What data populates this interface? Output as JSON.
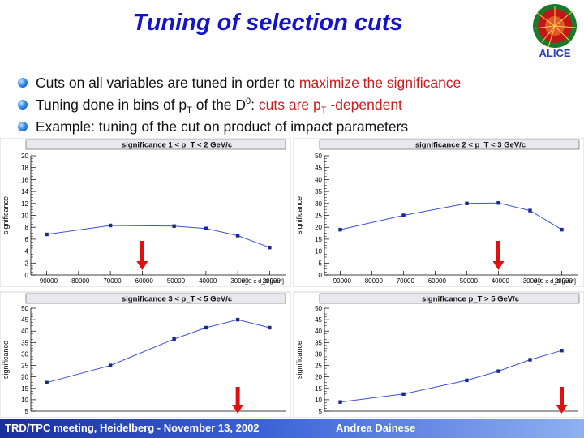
{
  "slide": {
    "title": "Tuning of selection cuts",
    "bullets": [
      {
        "parts": [
          {
            "t": "Cuts on all variables are tuned in order to ",
            "c": ""
          },
          {
            "t": "maximize the significance",
            "c": "red"
          }
        ]
      },
      {
        "parts": [
          {
            "t": "Tuning done in bins of p",
            "c": ""
          },
          {
            "t": "T",
            "c": "sub"
          },
          {
            "t": " of the D",
            "c": ""
          },
          {
            "t": "0",
            "c": "sup"
          },
          {
            "t": ": ",
            "c": ""
          },
          {
            "t": "cuts are p",
            "c": "red"
          },
          {
            "t": "T",
            "c": "red sub"
          },
          {
            "t": " -dependent",
            "c": "red"
          }
        ]
      },
      {
        "parts": [
          {
            "t": "Example: tuning of the cut on product of impact parameters",
            "c": ""
          }
        ]
      }
    ],
    "footer_left": "TRD/TPC meeting, Heidelberg - November 13, 2002",
    "footer_right": "Andrea Dainese",
    "logo_text": "ALICE",
    "logo_icon": "alice-logo-icon",
    "arrow_icon": "red-arrow-down-icon"
  },
  "colors": {
    "title": "#1515c8",
    "highlight": "#c81e1e",
    "curve": "#3c50d8",
    "marker": "#1a2a8a",
    "arrow": "#e01010",
    "footer_start": "#1a2f9c",
    "footer_end": "#8fb0f0"
  },
  "chart_data": [
    {
      "type": "line",
      "title": "significance  1 < p_T < 2 GeV/c",
      "ylabel": "significance",
      "xlabel": "d_0 x d_0 [µm²]",
      "ylim": [
        0,
        20
      ],
      "yticks": [
        0,
        2,
        4,
        6,
        8,
        10,
        12,
        14,
        16,
        18,
        20
      ],
      "xlim": [
        -95000,
        -15000
      ],
      "xticks": [
        -90000,
        -80000,
        -70000,
        -60000,
        -50000,
        -40000,
        -30000,
        -20000
      ],
      "x": [
        -90000,
        -70000,
        -50000,
        -40000,
        -30000,
        -20000
      ],
      "values": [
        6.8,
        8.3,
        8.2,
        7.8,
        6.6,
        4.6
      ],
      "arrow_x": -60000
    },
    {
      "type": "line",
      "title": "significance  2 < p_T < 3 GeV/c",
      "ylabel": "significance",
      "xlabel": "d_0 x d_0 [µm²]",
      "ylim": [
        0,
        50
      ],
      "yticks": [
        0,
        5,
        10,
        15,
        20,
        25,
        30,
        35,
        40,
        45,
        50
      ],
      "xlim": [
        -95000,
        -15000
      ],
      "xticks": [
        -90000,
        -80000,
        -70000,
        -60000,
        -50000,
        -40000,
        -30000,
        -20000
      ],
      "x": [
        -90000,
        -70000,
        -50000,
        -40000,
        -30000,
        -20000
      ],
      "values": [
        19,
        25,
        30,
        30.2,
        27,
        19
      ],
      "arrow_x": -40000
    },
    {
      "type": "line",
      "title": "significance  3 < p_T < 5 GeV/c",
      "ylabel": "significance",
      "xlabel": "",
      "ylim": [
        5,
        50
      ],
      "yticks": [
        5,
        10,
        15,
        20,
        25,
        30,
        35,
        40,
        45,
        50
      ],
      "xlim": [
        -95000,
        -15000
      ],
      "xticks": [],
      "x": [
        -90000,
        -70000,
        -50000,
        -40000,
        -30000,
        -20000
      ],
      "values": [
        17.5,
        25,
        36.5,
        41.5,
        45,
        41.5
      ],
      "arrow_x": -30000
    },
    {
      "type": "line",
      "title": "significance  p_T > 5 GeV/c",
      "ylabel": "significance",
      "xlabel": "",
      "ylim": [
        5,
        50
      ],
      "yticks": [
        5,
        10,
        15,
        20,
        25,
        30,
        35,
        40,
        45,
        50
      ],
      "xlim": [
        -95000,
        -15000
      ],
      "xticks": [],
      "x": [
        -90000,
        -70000,
        -50000,
        -40000,
        -30000,
        -20000
      ],
      "values": [
        9,
        12.5,
        18.5,
        22.5,
        27.5,
        31.5
      ],
      "arrow_x": -20000
    }
  ]
}
